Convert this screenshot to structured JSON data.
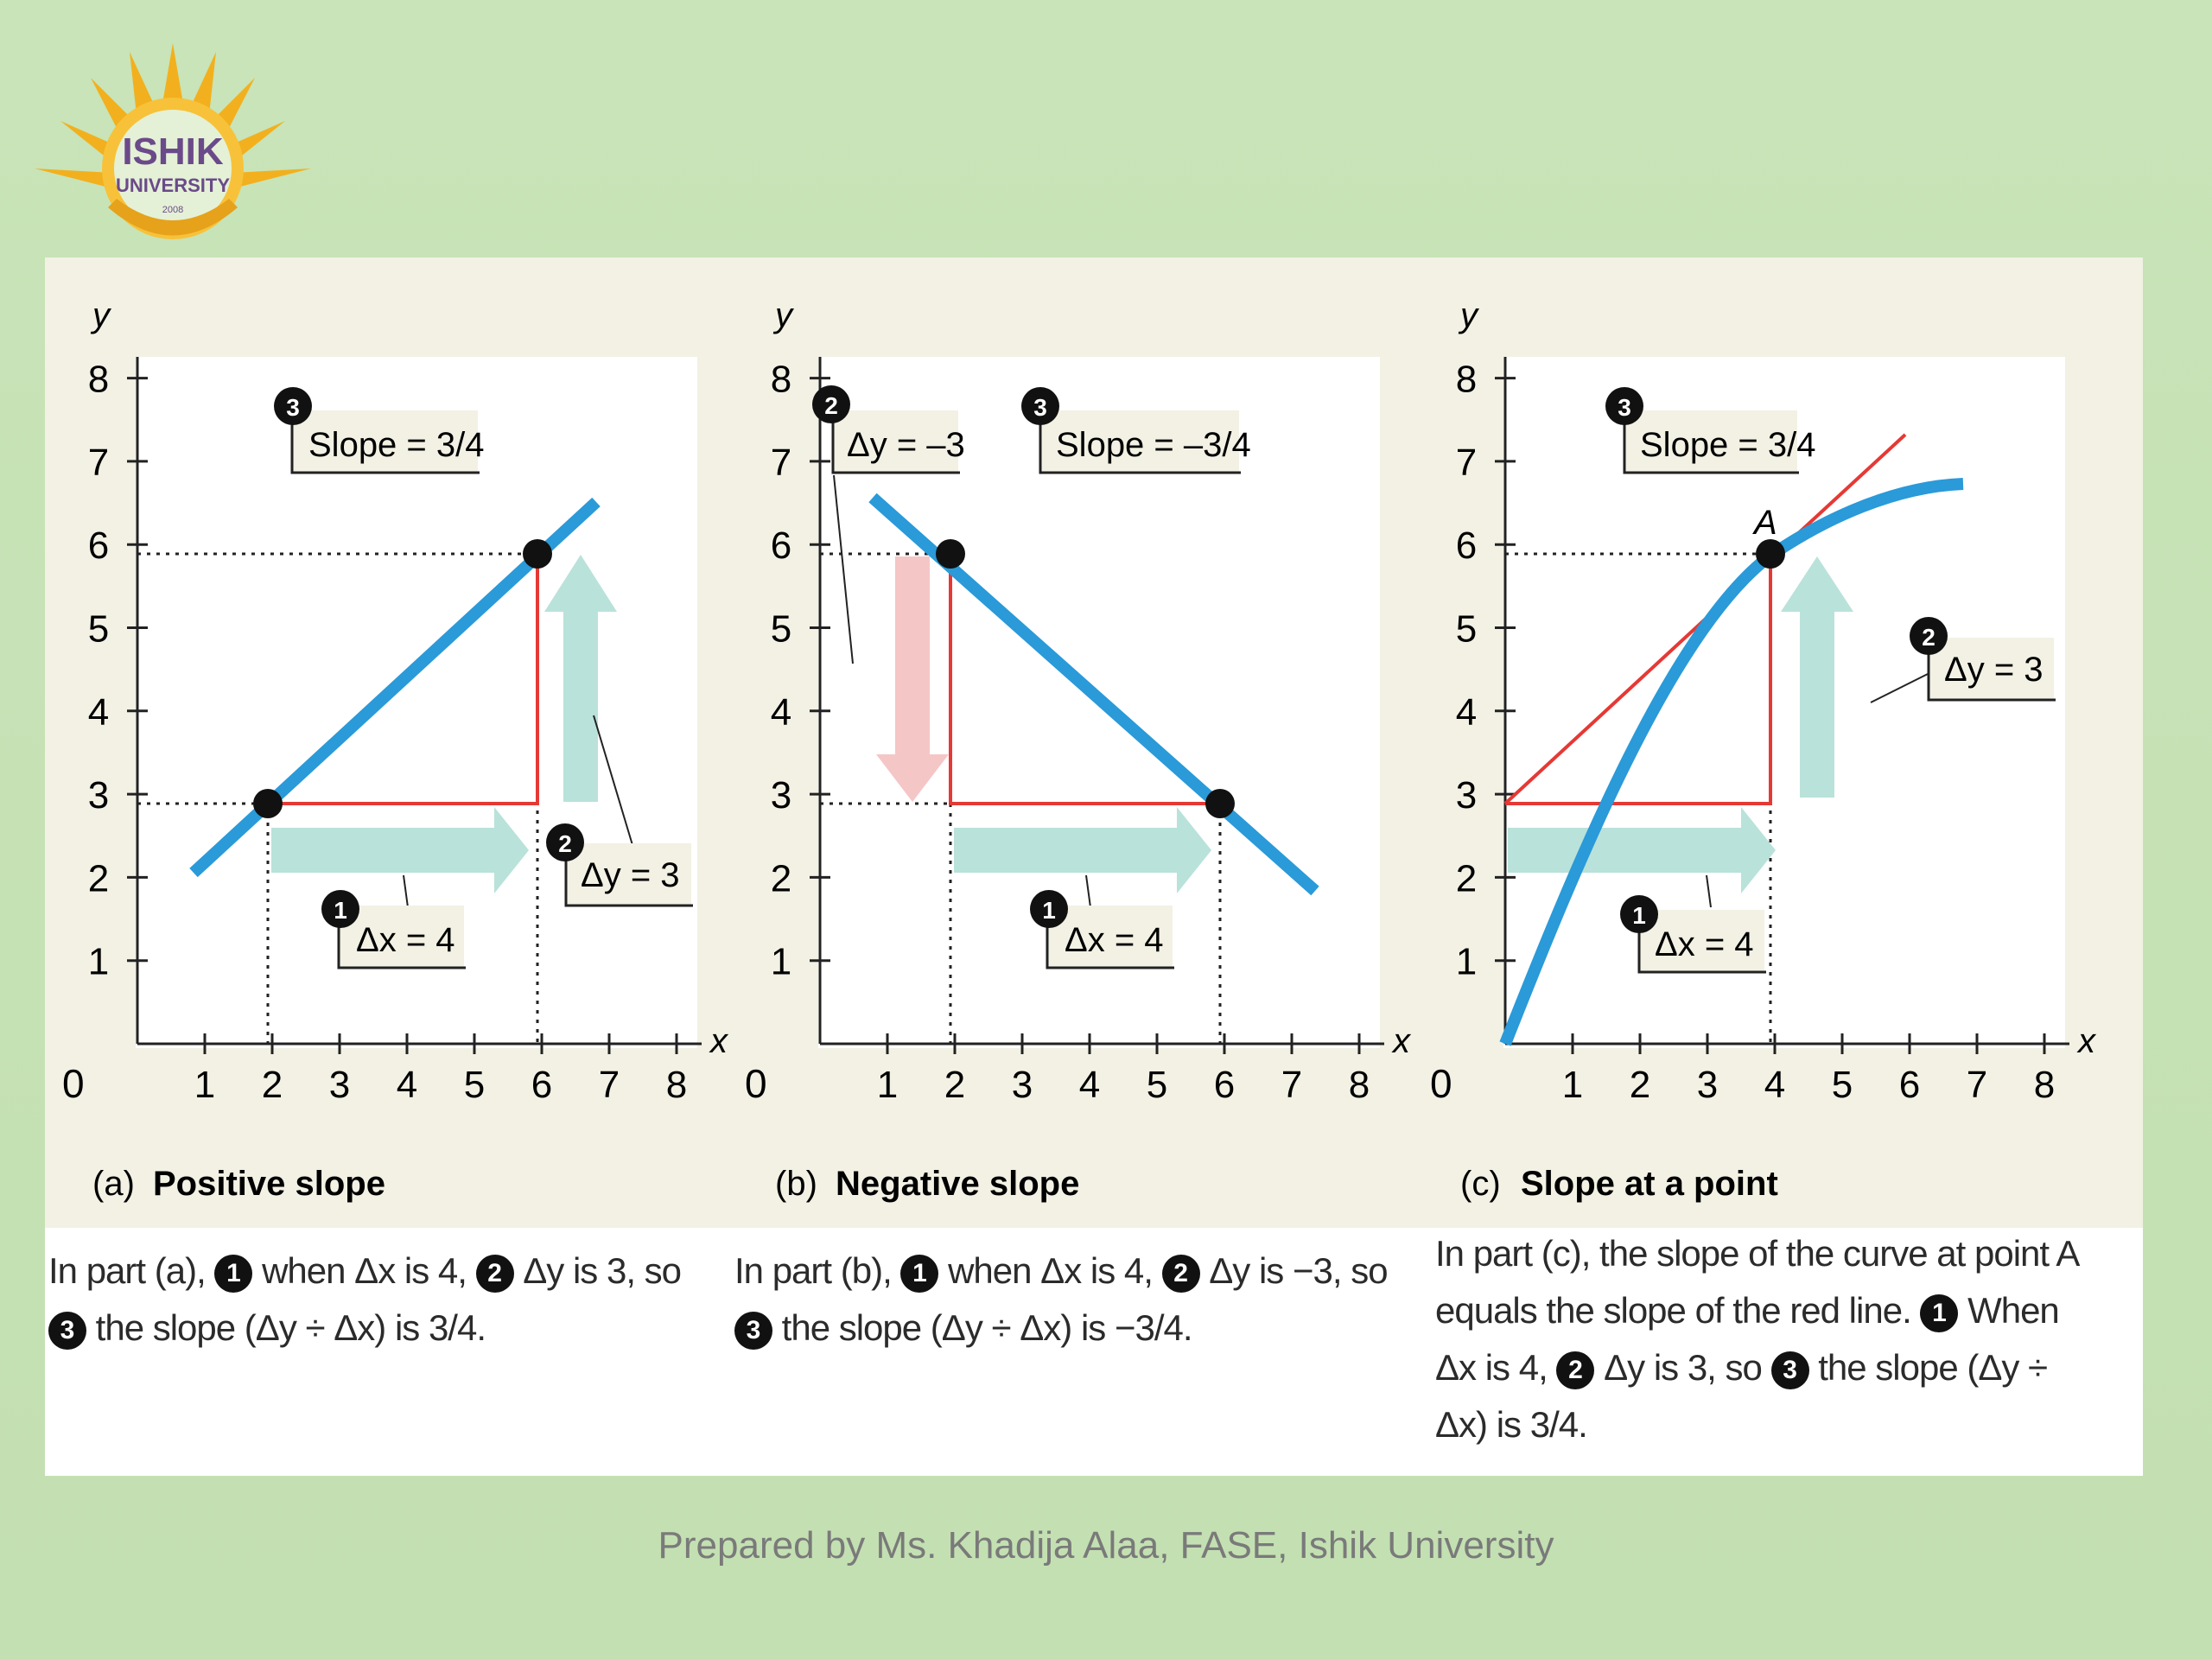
{
  "logo": {
    "name": "ISHIK",
    "sub": "UNIVERSITY",
    "year": "2008"
  },
  "footer": "Prepared by Ms. Khadija Alaa, FASE, Ishik University",
  "colors": {
    "background": "#c6e2b5",
    "line": "#2a9ad9",
    "triangle": "#e53935",
    "arrow": "#b9e2da",
    "down_arrow": "#f5c6c6"
  },
  "axis_labels": {
    "x": "x",
    "y": "y",
    "origin": "0"
  },
  "ticks": [
    "1",
    "2",
    "3",
    "4",
    "5",
    "6",
    "7",
    "8"
  ],
  "panels": [
    {
      "id": "a",
      "title_prefix": "(a)",
      "title": "Positive slope",
      "slope_label": "Slope = 3/4",
      "dx_label": "Δx = 4",
      "dy_label": "Δy = 3",
      "markers": {
        "one": "1",
        "two": "2",
        "three": "3"
      },
      "caption": [
        {
          "t": "text",
          "v": "In part (a), "
        },
        {
          "t": "num",
          "v": "1"
        },
        {
          "t": "text",
          "v": " when Δx is 4, "
        },
        {
          "t": "num",
          "v": "2"
        },
        {
          "t": "text",
          "v": " Δy is 3, so "
        },
        {
          "t": "num",
          "v": "3"
        },
        {
          "t": "text",
          "v": " the slope (Δy ÷ Δx) is 3/4."
        }
      ]
    },
    {
      "id": "b",
      "title_prefix": "(b)",
      "title": "Negative slope",
      "slope_label": "Slope = –3/4",
      "dx_label": "Δx = 4",
      "dy_label": "Δy = –3",
      "markers": {
        "one": "1",
        "two": "2",
        "three": "3"
      },
      "caption": [
        {
          "t": "text",
          "v": "In part (b), "
        },
        {
          "t": "num",
          "v": "1"
        },
        {
          "t": "text",
          "v": " when Δx is 4, "
        },
        {
          "t": "num",
          "v": "2"
        },
        {
          "t": "text",
          "v": " Δy is −3, so "
        },
        {
          "t": "num",
          "v": "3"
        },
        {
          "t": "text",
          "v": " the slope (Δy ÷ Δx) is −3/4."
        }
      ]
    },
    {
      "id": "c",
      "title_prefix": "(c)",
      "title": "Slope at a point",
      "slope_label": "Slope = 3/4",
      "dx_label": "Δx = 4",
      "dy_label": "Δy = 3",
      "point_label": "A",
      "markers": {
        "one": "1",
        "two": "2",
        "three": "3"
      },
      "caption": [
        {
          "t": "text",
          "v": "In part (c), the slope of the curve at point A equals the slope of the red line. "
        },
        {
          "t": "num",
          "v": "1"
        },
        {
          "t": "text",
          "v": " When Δx is 4, "
        },
        {
          "t": "num",
          "v": "2"
        },
        {
          "t": "text",
          "v": " Δy is 3, so "
        },
        {
          "t": "num",
          "v": "3"
        },
        {
          "t": "text",
          "v": " the slope (Δy ÷ Δx) is 3/4."
        }
      ]
    }
  ]
}
